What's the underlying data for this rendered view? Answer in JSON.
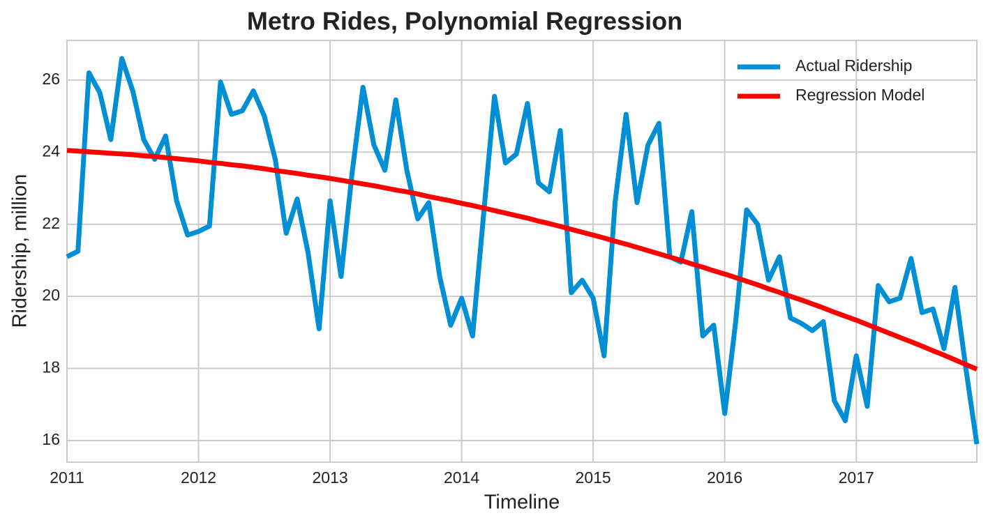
{
  "chart_data": {
    "type": "line",
    "title": "Metro Rides, Polynomial Regression",
    "xlabel": "Timeline",
    "ylabel": "Ridership, million",
    "x": [
      "2011-01",
      "2011-02",
      "2011-03",
      "2011-04",
      "2011-05",
      "2011-06",
      "2011-07",
      "2011-08",
      "2011-09",
      "2011-10",
      "2011-11",
      "2011-12",
      "2012-01",
      "2012-02",
      "2012-03",
      "2012-04",
      "2012-05",
      "2012-06",
      "2012-07",
      "2012-08",
      "2012-09",
      "2012-10",
      "2012-11",
      "2012-12",
      "2013-01",
      "2013-02",
      "2013-03",
      "2013-04",
      "2013-05",
      "2013-06",
      "2013-07",
      "2013-08",
      "2013-09",
      "2013-10",
      "2013-11",
      "2013-12",
      "2014-01",
      "2014-02",
      "2014-03",
      "2014-04",
      "2014-05",
      "2014-06",
      "2014-07",
      "2014-08",
      "2014-09",
      "2014-10",
      "2014-11",
      "2014-12",
      "2015-01",
      "2015-02",
      "2015-03",
      "2015-04",
      "2015-05",
      "2015-06",
      "2015-07",
      "2015-08",
      "2015-09",
      "2015-10",
      "2015-11",
      "2015-12",
      "2016-01",
      "2016-02",
      "2016-03",
      "2016-04",
      "2016-05",
      "2016-06",
      "2016-07",
      "2016-08",
      "2016-09",
      "2016-10",
      "2016-11",
      "2016-12",
      "2017-01",
      "2017-02",
      "2017-03",
      "2017-04",
      "2017-05",
      "2017-06",
      "2017-07",
      "2017-08",
      "2017-09",
      "2017-10",
      "2017-11",
      "2017-12"
    ],
    "series": [
      {
        "name": "Actual Ridership",
        "color": "#008fd5",
        "values": [
          21.1,
          21.25,
          26.2,
          25.65,
          24.35,
          26.6,
          25.7,
          24.35,
          23.8,
          24.45,
          22.65,
          21.7,
          21.8,
          21.95,
          25.95,
          25.05,
          25.15,
          25.7,
          25.0,
          23.8,
          21.75,
          22.7,
          21.2,
          19.1,
          22.65,
          20.55,
          23.4,
          25.8,
          24.2,
          23.5,
          25.45,
          23.5,
          22.15,
          22.6,
          20.55,
          19.2,
          19.95,
          18.9,
          22.25,
          25.55,
          23.7,
          23.95,
          25.35,
          23.15,
          22.9,
          24.6,
          20.1,
          20.45,
          19.95,
          18.35,
          22.6,
          25.05,
          22.6,
          24.2,
          24.8,
          21.1,
          20.95,
          22.35,
          18.9,
          19.2,
          16.75,
          19.3,
          22.4,
          22.0,
          20.45,
          21.1,
          19.4,
          19.25,
          19.05,
          19.3,
          17.1,
          16.55,
          18.35,
          16.95,
          20.3,
          19.85,
          19.95,
          21.05,
          19.55,
          19.65,
          18.55,
          20.25,
          18.0,
          15.9
        ]
      },
      {
        "name": "Regression Model",
        "color": "#ff0000",
        "values": [
          24.05,
          24.03,
          24.01,
          23.99,
          23.97,
          23.95,
          23.93,
          23.9,
          23.88,
          23.85,
          23.82,
          23.79,
          23.76,
          23.72,
          23.69,
          23.65,
          23.62,
          23.58,
          23.54,
          23.49,
          23.45,
          23.41,
          23.36,
          23.32,
          23.27,
          23.22,
          23.17,
          23.12,
          23.07,
          23.01,
          22.95,
          22.9,
          22.84,
          22.77,
          22.71,
          22.65,
          22.58,
          22.52,
          22.45,
          22.38,
          22.31,
          22.24,
          22.17,
          22.09,
          22.02,
          21.94,
          21.86,
          21.78,
          21.7,
          21.62,
          21.53,
          21.45,
          21.36,
          21.27,
          21.18,
          21.09,
          21.0,
          20.9,
          20.81,
          20.71,
          20.62,
          20.52,
          20.42,
          20.32,
          20.21,
          20.11,
          20.0,
          19.9,
          19.79,
          19.68,
          19.56,
          19.45,
          19.34,
          19.22,
          19.1,
          18.98,
          18.86,
          18.74,
          18.62,
          18.49,
          18.37,
          18.24,
          18.11,
          17.98
        ]
      }
    ],
    "xlim": [
      "2011-01",
      "2017-12"
    ],
    "xticks": [
      {
        "value": "2011-01",
        "label": "2011"
      },
      {
        "value": "2012-01",
        "label": "2012"
      },
      {
        "value": "2013-01",
        "label": "2013"
      },
      {
        "value": "2014-01",
        "label": "2014"
      },
      {
        "value": "2015-01",
        "label": "2015"
      },
      {
        "value": "2016-01",
        "label": "2016"
      },
      {
        "value": "2017-01",
        "label": "2017"
      }
    ],
    "ylim": [
      15.4,
      27.1
    ],
    "yticks": [
      16,
      18,
      20,
      22,
      24,
      26
    ],
    "grid": true,
    "legend": "upper right"
  }
}
